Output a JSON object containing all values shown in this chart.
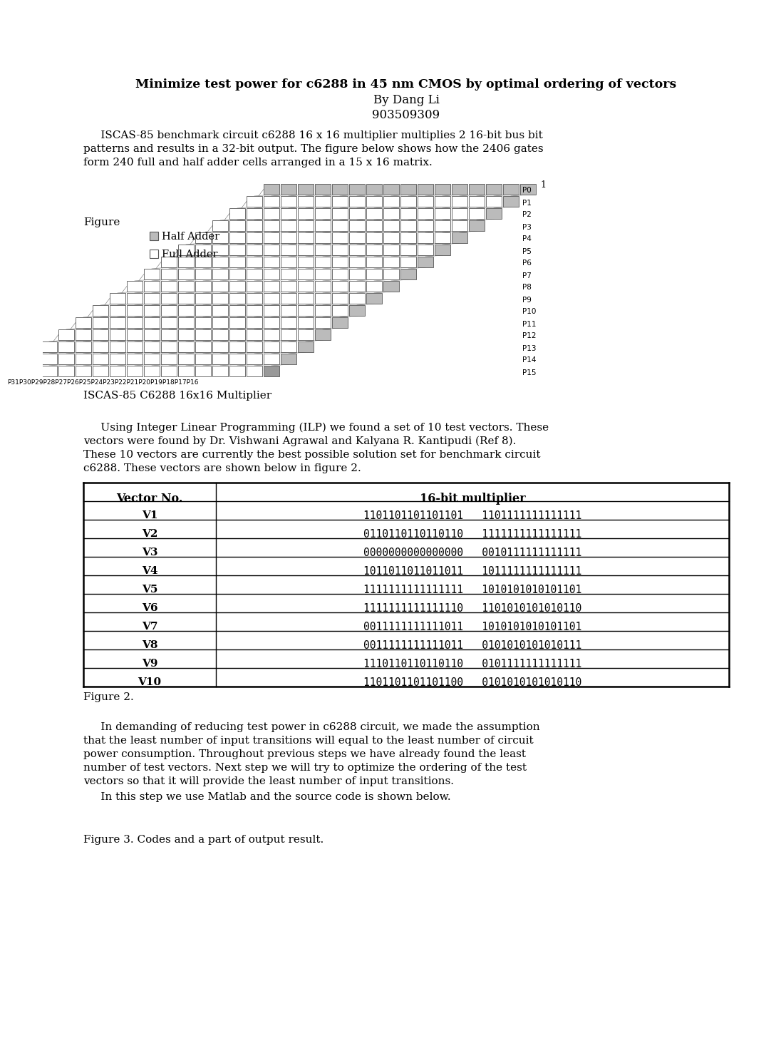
{
  "title_line1": "Minimize test power for c6288 in 45 nm CMOS by optimal ordering of vectors",
  "title_line2": "By Dang Li",
  "title_line3": "903509309",
  "intro_lines": [
    "     ISCAS-85 benchmark circuit c6288 16 x 16 multiplier multiplies 2 16-bit bus bit",
    "patterns and results in a 32-bit output. The figure below shows how the 2406 gates",
    "form 240 full and half adder cells arranged in a 15 x 16 matrix."
  ],
  "figure_label": "Figure",
  "legend_half": "Half Adder",
  "legend_full": "Full Adder",
  "p_right_labels": [
    "P0",
    "P1",
    "P2",
    "P3",
    "P4",
    "P5",
    "P6",
    "P7",
    "P8",
    "P9",
    "P10",
    "P11",
    "P12",
    "P13",
    "P14",
    "P15"
  ],
  "p_bottom_labels": "P31P30P29P28P27P26P25P24P23P22P21P20P19P18P17P16",
  "figure_caption": "ISCAS-85 C6288 16x16 Multiplier",
  "ilp_lines": [
    "     Using Integer Linear Programming (ILP) we found a set of 10 test vectors. These",
    "vectors were found by Dr. Vishwani Agrawal and Kalyana R. Kantipudi (Ref 8).",
    "These 10 vectors are currently the best possible solution set for benchmark circuit",
    "c6288. These vectors are shown below in figure 2."
  ],
  "table_header": [
    "Vector No.",
    "16-bit multiplier"
  ],
  "table_rows": [
    [
      "V1",
      "1101101101101101   1101111111111111"
    ],
    [
      "V2",
      "0110110110110110   1111111111111111"
    ],
    [
      "V3",
      "0000000000000000   0010111111111111"
    ],
    [
      "V4",
      "1011011011011011   1011111111111111"
    ],
    [
      "V5",
      "1111111111111111   1010101010101101"
    ],
    [
      "V6",
      "1111111111111110   1101010101010110"
    ],
    [
      "V7",
      "0011111111111011   1010101010101101"
    ],
    [
      "V8",
      "0011111111111011   0101010101010111"
    ],
    [
      "V9",
      "1110110110110110   0101111111111111"
    ],
    [
      "V10",
      "1101101101101100   0101010101010110"
    ]
  ],
  "figure2_label": "Figure 2.",
  "body_lines": [
    "     In demanding of reducing test power in c6288 circuit, we made the assumption",
    "that the least number of input transitions will equal to the least number of circuit",
    "power consumption. Throughout previous steps we have already found the least",
    "number of test vectors. Next step we will try to optimize the ordering of the test",
    "vectors so that it will provide the least number of input transitions."
  ],
  "body_line2": "     In this step we use Matlab and the source code is shown below.",
  "figure3_label": "Figure 3. Codes and a part of output result.",
  "bg": "#ffffff",
  "fg": "#000000"
}
